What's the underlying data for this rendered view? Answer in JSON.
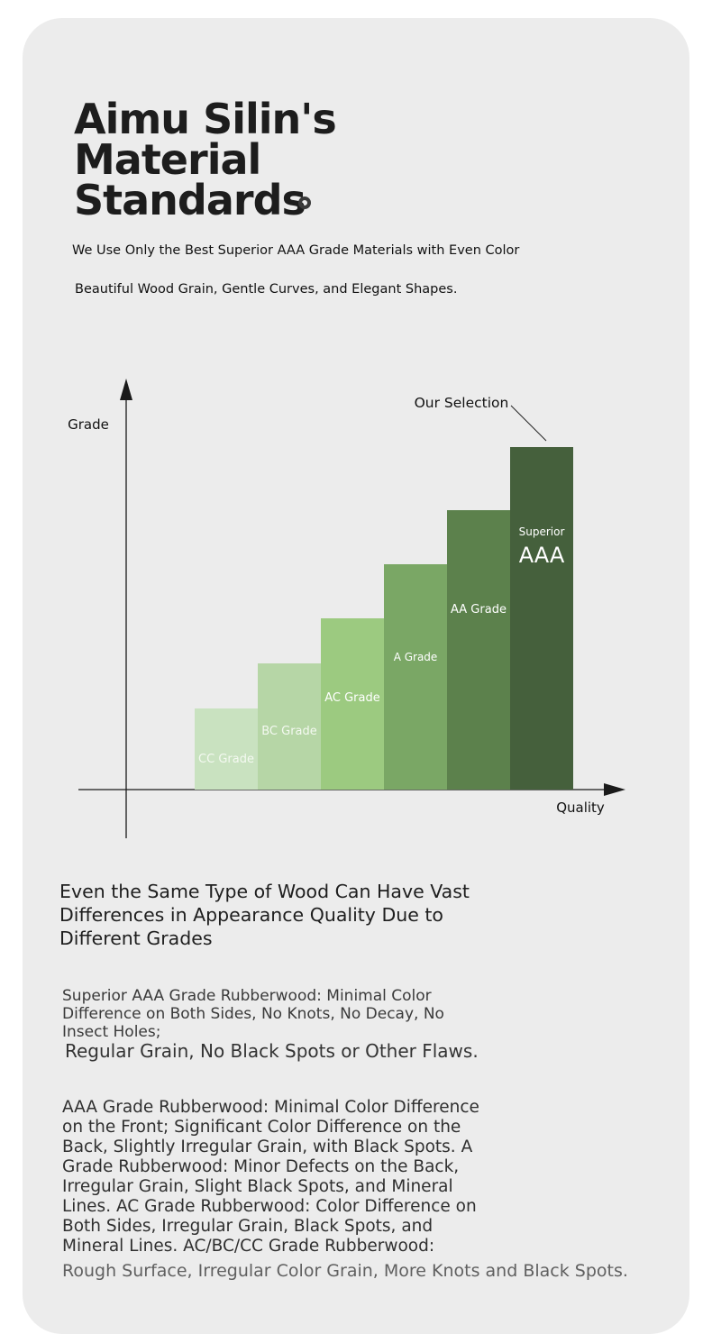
{
  "header": {
    "title_line1": "Aimu Silin's",
    "title_line2": "Material",
    "title_line3": "Standards",
    "subtitle_line1": "We Use Only the Best Superior AAA Grade Materials with Even Color",
    "subtitle_line2": "Beautiful Wood Grain, Gentle Curves, and Elegant Shapes."
  },
  "chart_data": {
    "type": "bar",
    "ylabel": "Grade",
    "xlabel": "Quality",
    "callout": "Our Selection",
    "categories": [
      "CC Grade",
      "BC Grade",
      "AC Grade",
      "A Grade",
      "AA Grade",
      "Superior AAA"
    ],
    "values": [
      1,
      2,
      3,
      4,
      5,
      6
    ],
    "bars": [
      {
        "label": "CC Grade",
        "color": "#c9e2c0"
      },
      {
        "label": "BC Grade",
        "color": "#b6d6a6"
      },
      {
        "label": "AC Grade",
        "color": "#9cca80"
      },
      {
        "label": "A Grade",
        "color": "#7aa765"
      },
      {
        "label": "AA Grade",
        "color": "#5c814c"
      },
      {
        "label": "Superior",
        "sublabel": "AAA",
        "color": "#45603c"
      }
    ]
  },
  "content": {
    "heading": "Even the Same Type of Wood Can Have Vast Differences in Appearance Quality Due to Different Grades",
    "p1": "Superior AAA Grade Rubberwood: Minimal Color Difference on Both Sides, No Knots, No Decay, No Insect Holes;",
    "p1b": "Regular Grain, No Black Spots or Other Flaws.",
    "p2": "AAA Grade Rubberwood: Minimal Color Difference on the Front; Significant Color Difference on the Back, Slightly Irregular Grain, with Black Spots. A Grade Rubberwood: Minor Defects on the Back, Irregular Grain, Slight Black Spots, and Mineral Lines. AC Grade Rubberwood: Color Difference on Both Sides, Irregular Grain, Black Spots, and Mineral Lines. AC/BC/CC Grade Rubberwood:",
    "p2b": "Rough Surface, Irregular Color Grain, More Knots and Black Spots."
  }
}
